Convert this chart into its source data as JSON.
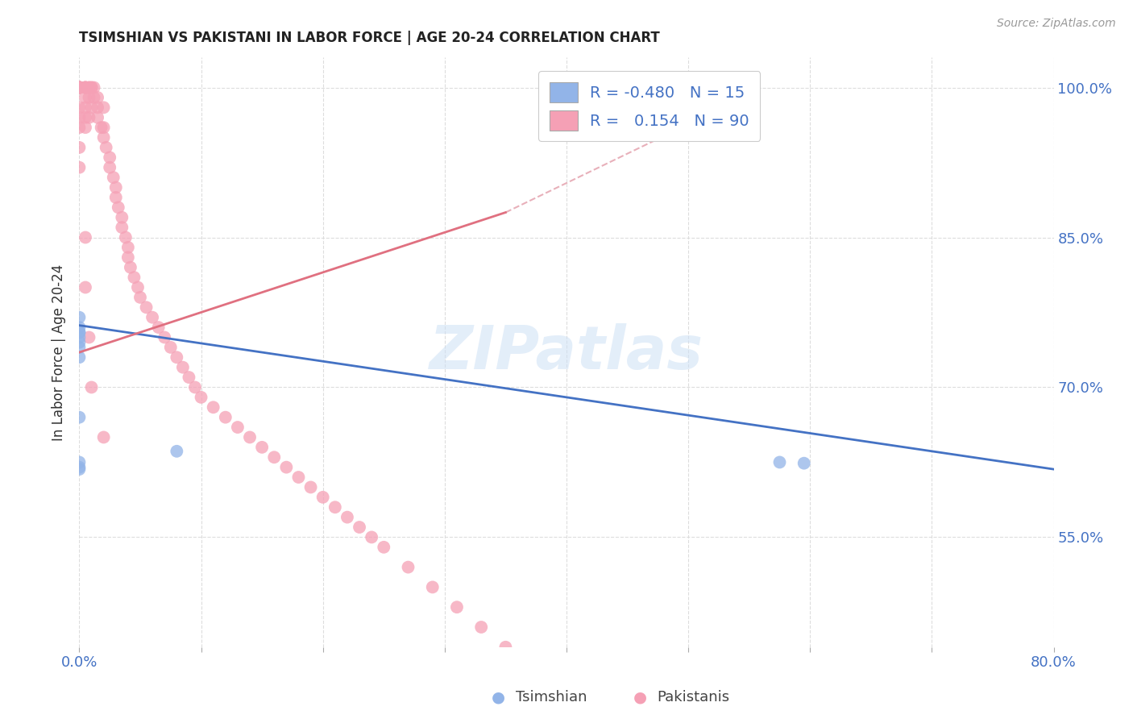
{
  "title": "TSIMSHIAN VS PAKISTANI IN LABOR FORCE | AGE 20-24 CORRELATION CHART",
  "source": "Source: ZipAtlas.com",
  "ylabel": "In Labor Force | Age 20-24",
  "xlim": [
    0.0,
    0.8
  ],
  "ylim": [
    0.44,
    1.03
  ],
  "yticks": [
    0.55,
    0.7,
    0.85,
    1.0
  ],
  "yticklabels": [
    "55.0%",
    "70.0%",
    "85.0%",
    "100.0%"
  ],
  "xtick_left_label": "0.0%",
  "xtick_right_label": "80.0%",
  "watermark": "ZIPatlas",
  "legend_tsimshian_R": "-0.480",
  "legend_tsimshian_N": "15",
  "legend_pakistani_R": "0.154",
  "legend_pakistani_N": "90",
  "tsimshian_color": "#92b4e8",
  "pakistani_color": "#f5a0b5",
  "tsimshian_line_color": "#4472c4",
  "pakistani_line_color": "#e07080",
  "pakistani_line_dashed_color": "#e8b0ba",
  "tsimshian_scatter_x": [
    0.0,
    0.0,
    0.0,
    0.0,
    0.0,
    0.0,
    0.0,
    0.0,
    0.0,
    0.0,
    0.0,
    0.0,
    0.08,
    0.575,
    0.595
  ],
  "tsimshian_scatter_y": [
    0.755,
    0.77,
    0.73,
    0.745,
    0.74,
    0.755,
    0.67,
    0.62,
    0.618,
    0.625,
    0.75,
    0.76,
    0.636,
    0.625,
    0.624
  ],
  "pakistani_scatter_x": [
    0.0,
    0.0,
    0.0,
    0.0,
    0.0,
    0.0,
    0.0,
    0.0,
    0.0,
    0.0,
    0.0,
    0.0,
    0.0,
    0.0,
    0.0,
    0.005,
    0.005,
    0.005,
    0.005,
    0.005,
    0.005,
    0.005,
    0.005,
    0.008,
    0.008,
    0.008,
    0.008,
    0.01,
    0.01,
    0.01,
    0.012,
    0.012,
    0.015,
    0.015,
    0.015,
    0.018,
    0.02,
    0.02,
    0.02,
    0.022,
    0.025,
    0.025,
    0.028,
    0.03,
    0.03,
    0.032,
    0.035,
    0.035,
    0.038,
    0.04,
    0.04,
    0.042,
    0.045,
    0.048,
    0.05,
    0.055,
    0.06,
    0.065,
    0.07,
    0.075,
    0.08,
    0.085,
    0.09,
    0.095,
    0.1,
    0.11,
    0.12,
    0.13,
    0.14,
    0.15,
    0.16,
    0.17,
    0.18,
    0.19,
    0.2,
    0.21,
    0.22,
    0.23,
    0.24,
    0.25,
    0.27,
    0.29,
    0.31,
    0.33,
    0.35,
    0.005,
    0.005,
    0.008,
    0.01,
    0.02
  ],
  "pakistani_scatter_y": [
    1.0,
    1.0,
    1.0,
    1.0,
    1.0,
    1.0,
    1.0,
    1.0,
    1.0,
    1.0,
    0.98,
    0.97,
    0.96,
    0.94,
    0.92,
    1.0,
    1.0,
    1.0,
    1.0,
    0.99,
    0.98,
    0.97,
    0.96,
    1.0,
    1.0,
    0.99,
    0.97,
    1.0,
    1.0,
    0.98,
    1.0,
    0.99,
    0.99,
    0.98,
    0.97,
    0.96,
    0.98,
    0.96,
    0.95,
    0.94,
    0.93,
    0.92,
    0.91,
    0.9,
    0.89,
    0.88,
    0.87,
    0.86,
    0.85,
    0.84,
    0.83,
    0.82,
    0.81,
    0.8,
    0.79,
    0.78,
    0.77,
    0.76,
    0.75,
    0.74,
    0.73,
    0.72,
    0.71,
    0.7,
    0.69,
    0.68,
    0.67,
    0.66,
    0.65,
    0.64,
    0.63,
    0.62,
    0.61,
    0.6,
    0.59,
    0.58,
    0.57,
    0.56,
    0.55,
    0.54,
    0.52,
    0.5,
    0.48,
    0.46,
    0.44,
    0.85,
    0.8,
    0.75,
    0.7,
    0.65
  ],
  "ts_line_x0": 0.0,
  "ts_line_x1": 0.8,
  "ts_line_y0": 0.762,
  "ts_line_y1": 0.618,
  "pk_line_solid_x0": 0.0,
  "pk_line_solid_x1": 0.35,
  "pk_line_solid_y0": 0.735,
  "pk_line_solid_y1": 0.875,
  "pk_line_dash_x0": 0.35,
  "pk_line_dash_x1": 0.52,
  "pk_line_dash_y0": 0.875,
  "pk_line_dash_y1": 0.975
}
